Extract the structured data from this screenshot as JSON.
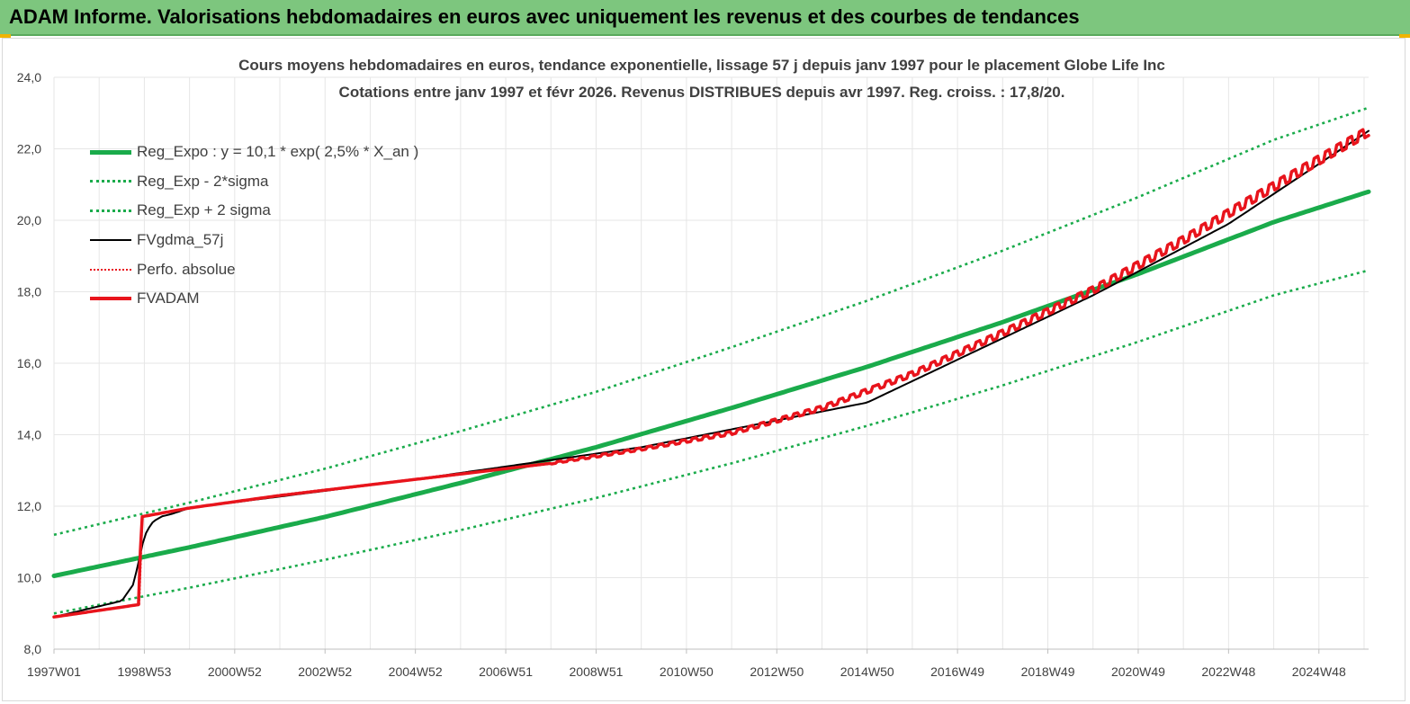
{
  "window": {
    "title": "ADAM Informe. Valorisations hebdomadaires en euros avec uniquement les revenus et des courbes de tendances"
  },
  "colors": {
    "header_bg": "#7dc67e",
    "trend": "#1aab4b",
    "fvgdma": "#000000",
    "fvadam": "#e8141c",
    "grid": "#e6e6e6"
  },
  "chart_data": {
    "type": "line",
    "title": "Cours moyens hebdomadaires en euros, tendance exponentielle, lissage 57 j depuis janv 1997 pour le placement Globe Life Inc",
    "subtitle": "Cotations entre janv 1997 et févr 2026. Revenus DISTRIBUES depuis avr 1997. Reg. croiss. : 17,8/20.",
    "xlabel": "",
    "ylabel": "",
    "x_range": [
      1997.0,
      2026.1
    ],
    "ylim": [
      8,
      24
    ],
    "y_ticks": [
      "8,0",
      "10,0",
      "12,0",
      "14,0",
      "16,0",
      "18,0",
      "20,0",
      "22,0",
      "24,0"
    ],
    "x_tick_labels": [
      "1997W01",
      "1998W53",
      "2000W52",
      "2002W52",
      "2004W52",
      "2006W51",
      "2008W51",
      "2010W50",
      "2012W50",
      "2014W50",
      "2016W49",
      "2018W49",
      "2020W49",
      "2022W48",
      "2024W48"
    ],
    "x_tick_positions": [
      1997.0,
      1999.0,
      2001.0,
      2003.0,
      2005.0,
      2007.0,
      2009.0,
      2011.0,
      2013.0,
      2015.0,
      2017.0,
      2019.0,
      2021.0,
      2023.0,
      2025.0
    ],
    "grid": true,
    "legend_position": "top-left",
    "series": [
      {
        "name": "Reg_Expo : y = 10,1 * exp( 2,5% *  X_an )",
        "style": "solid-thick",
        "color": "#1aab4b",
        "x": [
          1997.0,
          2000.0,
          2003.0,
          2006.0,
          2009.0,
          2012.0,
          2015.0,
          2018.0,
          2021.0,
          2024.0,
          2026.1
        ],
        "values": [
          10.05,
          10.85,
          11.7,
          12.65,
          13.65,
          14.75,
          15.9,
          17.15,
          18.5,
          19.95,
          20.8
        ]
      },
      {
        "name": "Reg_Exp - 2*sigma",
        "style": "dotted",
        "color": "#1aab4b",
        "x": [
          1997.0,
          2000.0,
          2003.0,
          2006.0,
          2009.0,
          2012.0,
          2015.0,
          2018.0,
          2021.0,
          2024.0,
          2026.1
        ],
        "values": [
          9.0,
          9.72,
          10.5,
          11.33,
          12.23,
          13.2,
          14.25,
          15.38,
          16.6,
          17.9,
          18.6
        ]
      },
      {
        "name": "Reg_Exp + 2 sigma",
        "style": "dotted",
        "color": "#1aab4b",
        "x": [
          1997.0,
          2000.0,
          2003.0,
          2006.0,
          2009.0,
          2012.0,
          2015.0,
          2018.0,
          2021.0,
          2024.0,
          2026.1
        ],
        "values": [
          11.2,
          12.1,
          13.05,
          14.1,
          15.2,
          16.45,
          17.75,
          19.15,
          20.65,
          22.25,
          23.15
        ]
      },
      {
        "name": "FVgdma_57j",
        "style": "solid",
        "color": "#000000",
        "x": [
          1997.0,
          1998.0,
          1998.5,
          1998.75,
          1998.85,
          1998.95,
          1999.05,
          1999.2,
          1999.4,
          1999.6,
          2000.0,
          2005.0,
          2010.0,
          2015.0,
          2020.0,
          2023.0,
          2026.1
        ],
        "values": [
          8.9,
          9.2,
          9.35,
          9.8,
          10.3,
          10.9,
          11.3,
          11.58,
          11.72,
          11.78,
          11.95,
          12.75,
          13.65,
          14.9,
          17.9,
          19.9,
          22.5
        ]
      },
      {
        "name": "Perfo. absolue",
        "style": "dotted",
        "color": "#e8141c",
        "x": [
          1997.0,
          1998.9,
          1998.92,
          2000.0,
          2005.0,
          2010.0,
          2015.0,
          2020.0,
          2023.0,
          2026.1
        ],
        "values": [
          8.9,
          9.25,
          11.7,
          11.95,
          12.75,
          13.65,
          14.9,
          17.9,
          19.9,
          22.5
        ]
      },
      {
        "name": "FVADAM",
        "style": "solid-thick",
        "color": "#e8141c",
        "x": [
          1997.0,
          1998.9,
          1998.92,
          2000.0,
          2002.0,
          2004.0,
          2006.0,
          2008.0,
          2010.0,
          2012.0,
          2014.0,
          2016.0,
          2018.0,
          2020.0,
          2022.0,
          2024.0,
          2026.1
        ],
        "values": [
          8.9,
          9.25,
          11.7,
          11.95,
          12.3,
          12.6,
          12.9,
          13.2,
          13.6,
          14.05,
          14.75,
          15.7,
          16.85,
          18.05,
          19.45,
          20.95,
          22.5
        ]
      }
    ]
  }
}
